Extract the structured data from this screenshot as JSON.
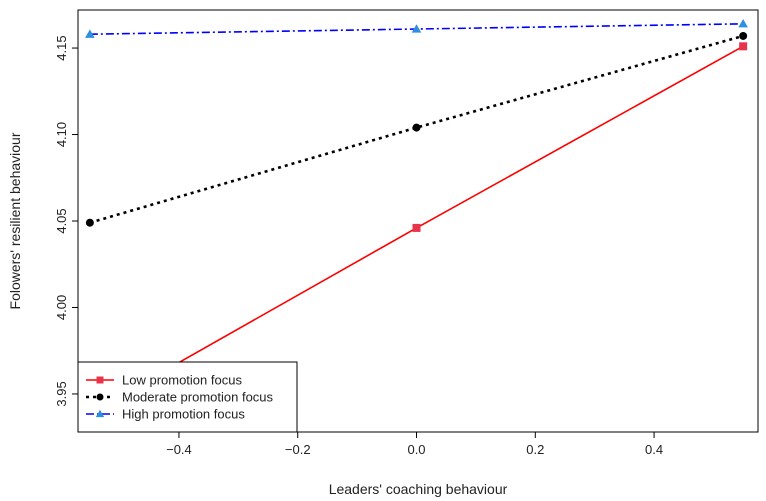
{
  "chart_data": {
    "type": "line",
    "xlabel": "Leaders' coaching behaviour",
    "ylabel": "Folowers' resilient behaviour",
    "xlim": [
      -0.57,
      0.575
    ],
    "ylim": [
      3.928,
      4.172
    ],
    "xticks": [
      -0.4,
      -0.2,
      0.0,
      0.2,
      0.4
    ],
    "xtick_labels": [
      "−0.4",
      "−0.2",
      "0.0",
      "0.2",
      "0.4"
    ],
    "yticks": [
      3.95,
      4.0,
      4.05,
      4.1,
      4.15
    ],
    "ytick_labels": [
      "3.95",
      "4.00",
      "4.05",
      "4.10",
      "4.15"
    ],
    "x": [
      -0.55,
      0.0,
      0.55
    ],
    "legend_position": "bottom-left",
    "grid": false,
    "series": [
      {
        "name": "Low promotion focus",
        "values": [
          3.939,
          4.046,
          4.151
        ],
        "color": "#ff0000",
        "marker": "square",
        "line_style": "solid"
      },
      {
        "name": "Moderate promotion focus",
        "values": [
          4.049,
          4.104,
          4.157
        ],
        "color": "#000000",
        "marker": "circle",
        "line_style": "dotted"
      },
      {
        "name": "High promotion focus",
        "values": [
          4.158,
          4.161,
          4.164
        ],
        "color": "#0000ff",
        "marker": "triangle",
        "line_style": "dashdot"
      }
    ]
  }
}
